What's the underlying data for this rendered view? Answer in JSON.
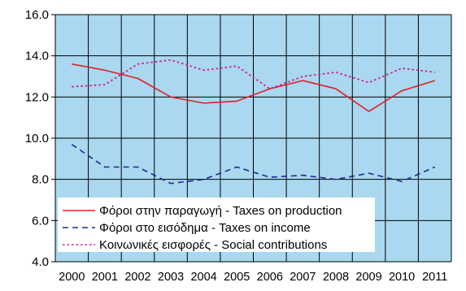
{
  "chart_data": {
    "type": "line",
    "title": "",
    "xlabel": "",
    "ylabel": "",
    "categories": [
      "2000",
      "2001",
      "2002",
      "2003",
      "2004",
      "2005",
      "2006",
      "2007",
      "2008",
      "2009",
      "2010",
      "2011"
    ],
    "ylim": [
      4.0,
      16.0
    ],
    "yticks": [
      "4.0",
      "6.0",
      "8.0",
      "10.0",
      "12.0",
      "14.0",
      "16.0"
    ],
    "grid": true,
    "legend_position": "bottom-left",
    "plot_background": "#a9d8f0",
    "series": [
      {
        "name": "Φόροι στην παραγωγή - Taxes on production",
        "color": "#e0202a",
        "style": "solid",
        "values": [
          13.6,
          13.3,
          12.9,
          12.0,
          11.7,
          11.8,
          12.4,
          12.8,
          12.4,
          11.3,
          12.3,
          12.8
        ]
      },
      {
        "name": "Φόροι στο εισόδημα - Taxes on income",
        "color": "#1d2a8c",
        "style": "dashed",
        "values": [
          9.7,
          8.6,
          8.6,
          7.8,
          8.0,
          8.6,
          8.1,
          8.2,
          8.0,
          8.3,
          7.9,
          8.6
        ]
      },
      {
        "name": "Κοινωνικές εισφορές - Social contributions",
        "color": "#d91a8f",
        "style": "dotted",
        "values": [
          12.5,
          12.6,
          13.6,
          13.8,
          13.3,
          13.5,
          12.4,
          13.0,
          13.2,
          12.7,
          13.4,
          13.2
        ]
      }
    ]
  }
}
